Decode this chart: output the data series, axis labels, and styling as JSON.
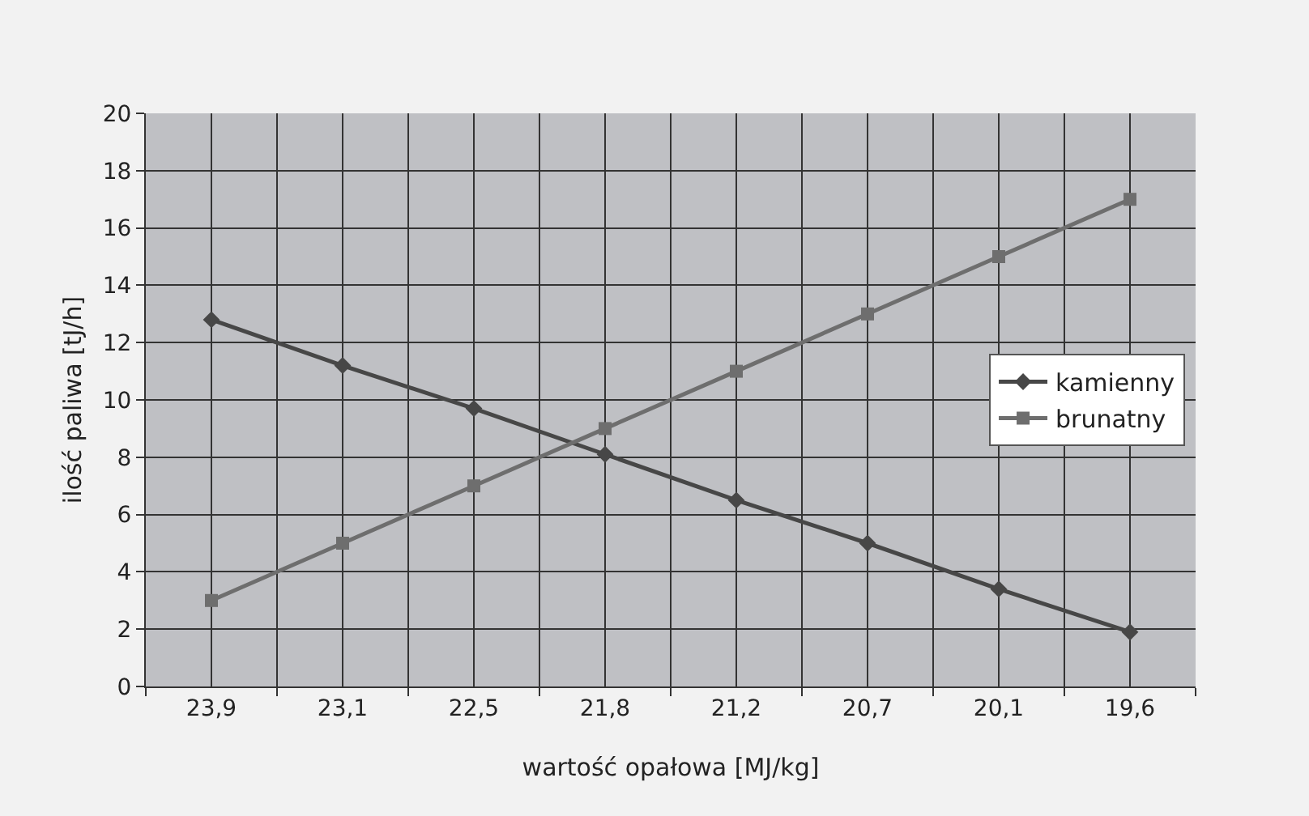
{
  "chart_data": {
    "type": "line",
    "xlabel": "wartość opałowa [MJ/kg]",
    "ylabel": "ilość paliwa [tJ/h]",
    "categories": [
      "23,9",
      "23,1",
      "22,5",
      "21,8",
      "21,2",
      "20,7",
      "20,1",
      "19,6"
    ],
    "series": [
      {
        "name": "kamienny",
        "color": "#474747",
        "marker": "diamond",
        "values": [
          12.8,
          11.2,
          9.7,
          8.1,
          6.5,
          5.0,
          3.4,
          1.9
        ]
      },
      {
        "name": "brunatny",
        "color": "#6e6e6e",
        "marker": "square",
        "values": [
          3,
          5,
          7,
          9,
          11,
          13,
          15,
          17
        ]
      }
    ],
    "ylim": [
      0,
      20
    ],
    "yticks": [
      0,
      2,
      4,
      6,
      8,
      10,
      12,
      14,
      16,
      18,
      20
    ],
    "grid": true,
    "legend": "right",
    "line_style": "solid"
  }
}
